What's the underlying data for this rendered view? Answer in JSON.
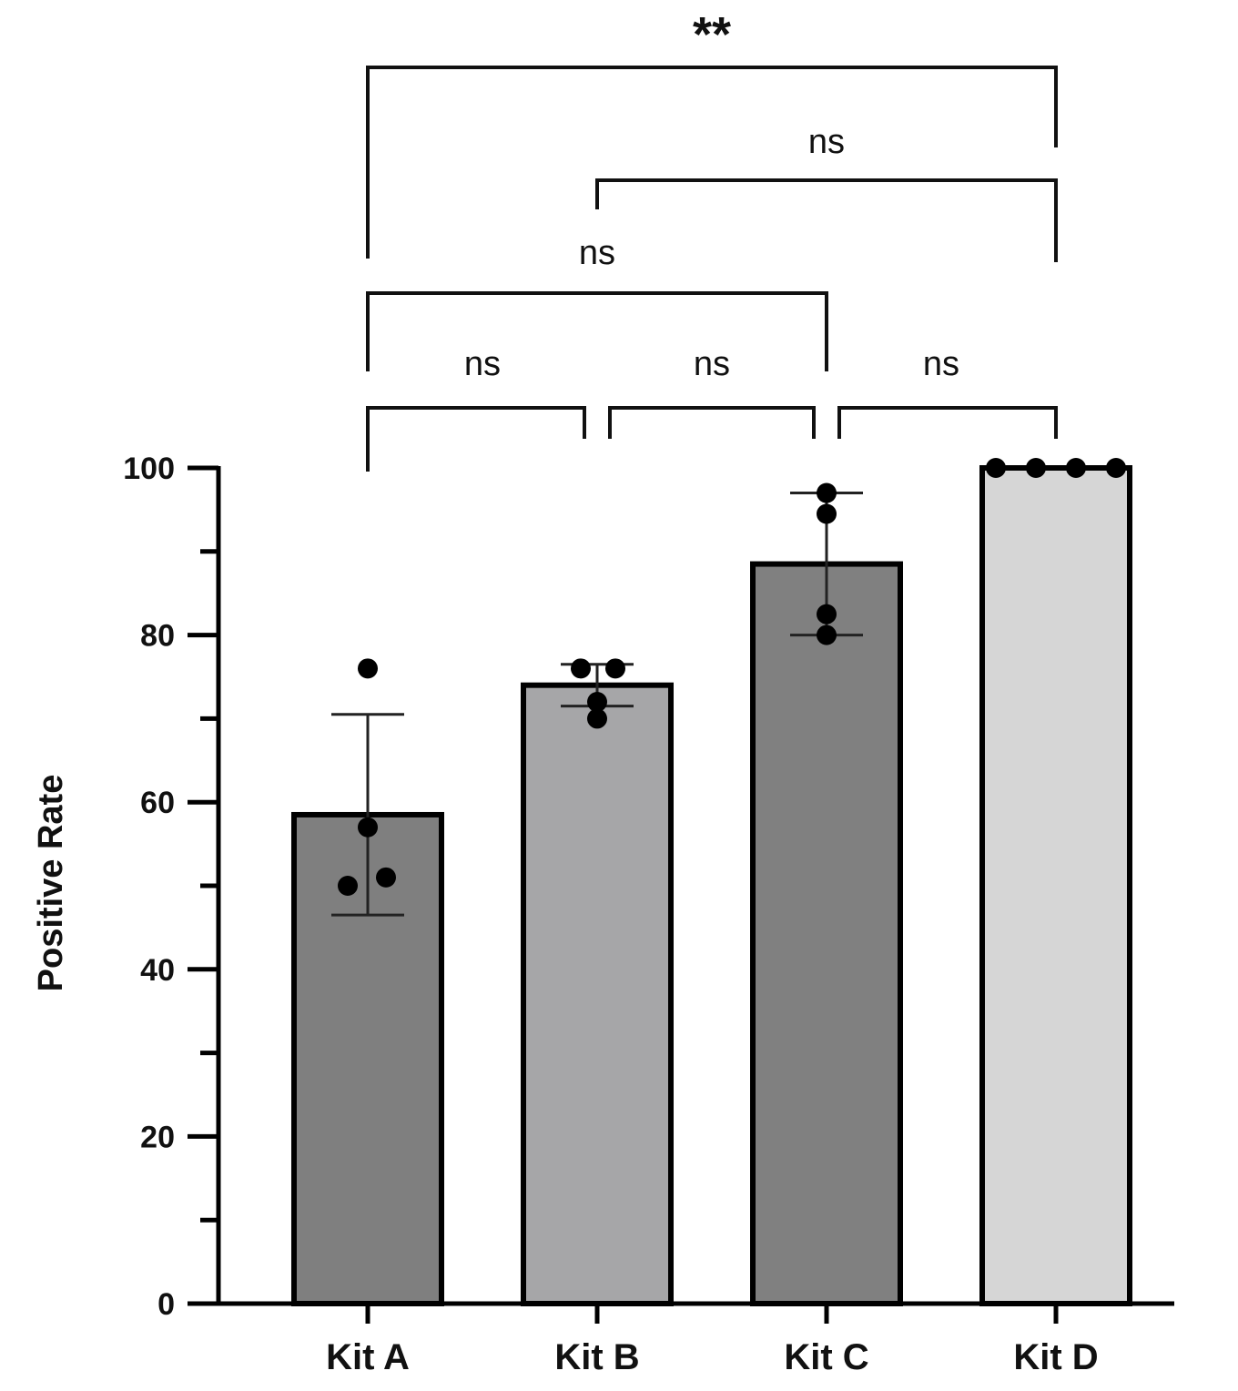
{
  "chart_data": {
    "type": "bar",
    "title": "",
    "xlabel": "",
    "ylabel": "Positive Rate",
    "ylim": [
      0,
      100
    ],
    "yticks": [
      0,
      20,
      40,
      60,
      80,
      100
    ],
    "categories": [
      "Kit A",
      "Kit B",
      "Kit C",
      "Kit D"
    ],
    "values": [
      58.5,
      74,
      88.5,
      100
    ],
    "error_bars": [
      {
        "low": 46.5,
        "high": 70.5
      },
      {
        "low": 71.5,
        "high": 76.5
      },
      {
        "low": 80,
        "high": 97
      },
      {
        "low": 100,
        "high": 100
      }
    ],
    "points": [
      [
        76,
        57,
        50,
        51
      ],
      [
        76,
        76,
        72,
        70
      ],
      [
        97,
        94.5,
        82.5,
        80
      ],
      [
        100,
        100,
        100,
        100
      ]
    ],
    "bar_colors": [
      "#7f7f7f",
      "#a6a6a8",
      "#808080",
      "#d6d6d6"
    ],
    "grid": false,
    "significance": [
      {
        "from": 0,
        "to": 1,
        "label": "ns"
      },
      {
        "from": 1,
        "to": 2,
        "label": "ns"
      },
      {
        "from": 2,
        "to": 3,
        "label": "ns"
      },
      {
        "from": 0,
        "to": 2,
        "label": "ns"
      },
      {
        "from": 1,
        "to": 3,
        "label": "ns"
      },
      {
        "from": 0,
        "to": 3,
        "label": "**"
      }
    ]
  }
}
